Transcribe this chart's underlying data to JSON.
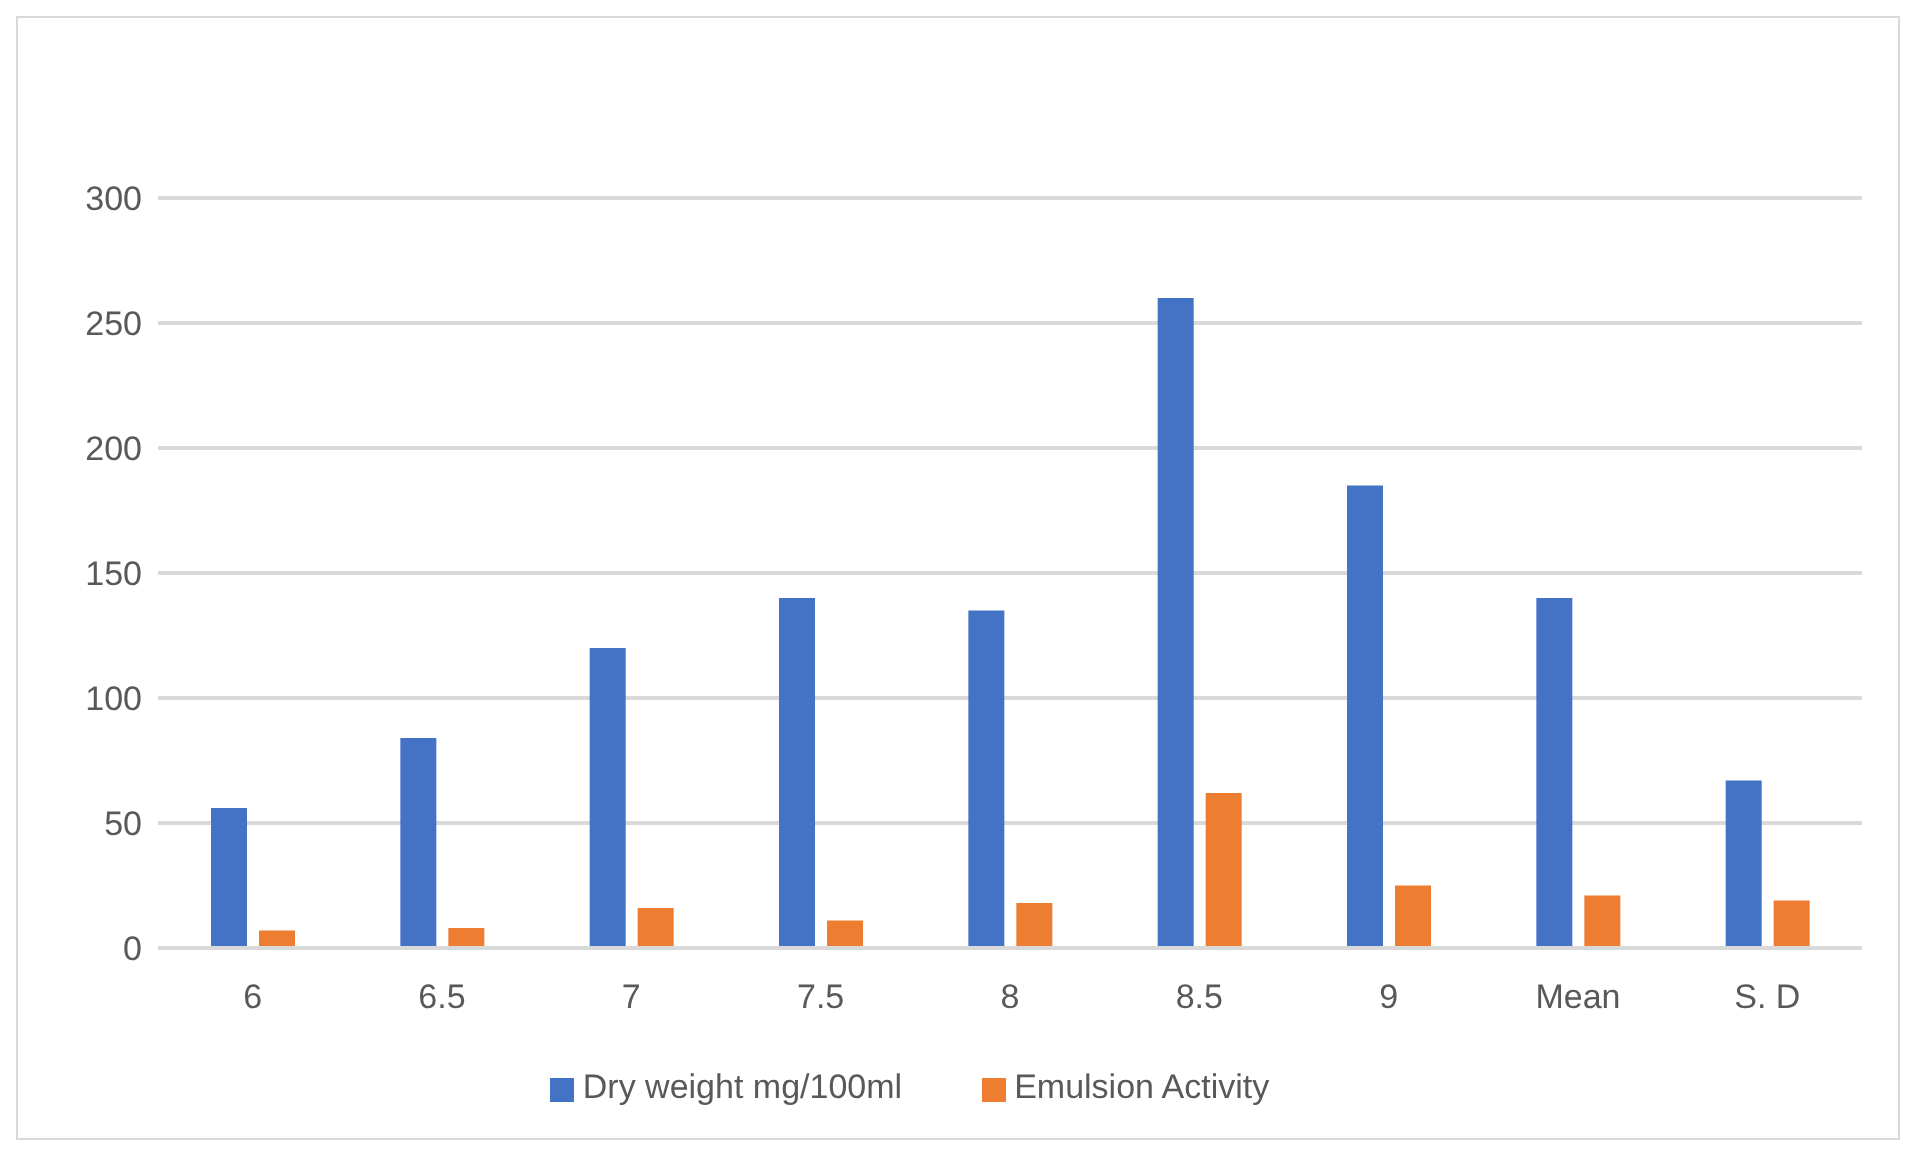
{
  "chart_data": {
    "type": "bar",
    "categories": [
      "6",
      "6.5",
      "7",
      "7.5",
      "8",
      "8.5",
      "9",
      "Mean",
      "S. D"
    ],
    "series": [
      {
        "name": "Dry weight mg/100ml",
        "color": "#4472c4",
        "values": [
          56,
          84,
          120,
          140,
          135,
          260,
          185,
          140,
          67
        ]
      },
      {
        "name": "Emulsion Activity",
        "color": "#ed7d31",
        "values": [
          7,
          8,
          16,
          11,
          18,
          62,
          25,
          21,
          19
        ]
      }
    ],
    "ylim": [
      0,
      300
    ],
    "yticks": [
      0,
      50,
      100,
      150,
      200,
      250,
      300
    ],
    "grid": "y",
    "legend": "bottom"
  }
}
